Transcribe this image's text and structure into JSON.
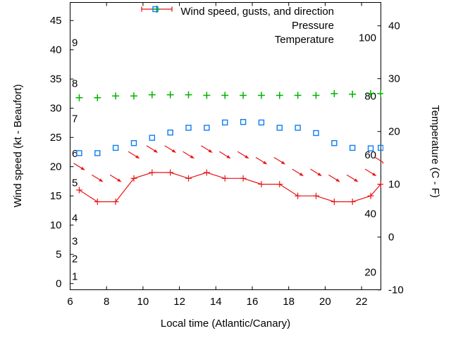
{
  "chart_data": {
    "type": "line",
    "title": "",
    "xlabel": "Local time (Atlantic/Canary)",
    "ylabel_left": "Wind speed (kt - Beaufort)",
    "ylabel_right": "Temperature (C - F)",
    "grid": false,
    "legend_position": "top-right-inside",
    "x_axis": {
      "min": 6,
      "max": 23.05,
      "ticks": [
        6,
        8,
        10,
        12,
        14,
        16,
        18,
        20,
        22
      ]
    },
    "wind_axis": {
      "units": "kt",
      "min": 0,
      "max": 45,
      "ticks": [
        0,
        5,
        10,
        15,
        20,
        25,
        30,
        35,
        40,
        45
      ],
      "beaufort_labels": [
        {
          "label": "1",
          "kt": 1
        },
        {
          "label": "2",
          "kt": 4
        },
        {
          "label": "3",
          "kt": 7
        },
        {
          "label": "4",
          "kt": 11
        },
        {
          "label": "5",
          "kt": 17
        },
        {
          "label": "6",
          "kt": 22
        },
        {
          "label": "7",
          "kt": 28
        },
        {
          "label": "8",
          "kt": 34
        },
        {
          "label": "9",
          "kt": 41
        }
      ]
    },
    "temp_axis": {
      "units": "C",
      "min": -10,
      "max": 40,
      "ticks_celsius": [
        -10,
        0,
        10,
        20,
        30,
        40
      ],
      "fahrenheit_inner_labels": [
        20,
        40,
        60,
        80,
        100
      ]
    },
    "x": [
      6.5,
      7.5,
      8.5,
      9.5,
      10.5,
      11.5,
      12.5,
      13.5,
      14.5,
      15.5,
      16.5,
      17.5,
      18.5,
      19.5,
      20.5,
      21.5,
      22.5,
      23.05
    ],
    "series": [
      {
        "name": "Wind speed, gusts, and direction",
        "marker": "plus-with-line",
        "color": "#e81414",
        "axis": "wind",
        "units": "kt",
        "in_legend": true,
        "values": [
          16,
          14,
          14,
          18,
          19,
          19,
          18,
          19,
          18,
          18,
          17,
          17,
          15,
          15,
          14,
          14,
          15,
          17
        ]
      },
      {
        "name": "Wind gusts (direction arrows)",
        "marker": "arrow-southeast",
        "color": "#e81414",
        "axis": "wind",
        "units": "kt",
        "in_legend": false,
        "values": [
          20,
          18,
          18,
          22,
          23,
          23,
          22,
          23,
          22,
          22,
          21,
          21,
          19,
          19,
          18,
          18,
          19,
          21
        ]
      },
      {
        "name": "Pressure",
        "marker": "plus",
        "color": "#00b200",
        "axis": "wind",
        "units": "left-axis plot level (no pressure scale shown)",
        "in_legend": true,
        "values": [
          31.8,
          31.8,
          32.1,
          32.1,
          32.3,
          32.3,
          32.3,
          32.2,
          32.2,
          32.2,
          32.2,
          32.2,
          32.2,
          32.2,
          32.5,
          32.4,
          32.5,
          32.5
        ]
      },
      {
        "name": "Temperature",
        "marker": "open-square",
        "color": "#0d7df2",
        "axis": "temp",
        "units": "C",
        "in_legend": true,
        "values": [
          15.9,
          15.9,
          16.9,
          17.8,
          18.8,
          19.8,
          20.7,
          20.7,
          21.7,
          21.8,
          21.7,
          20.7,
          20.7,
          19.7,
          17.8,
          16.9,
          16.8,
          16.9
        ]
      }
    ]
  }
}
